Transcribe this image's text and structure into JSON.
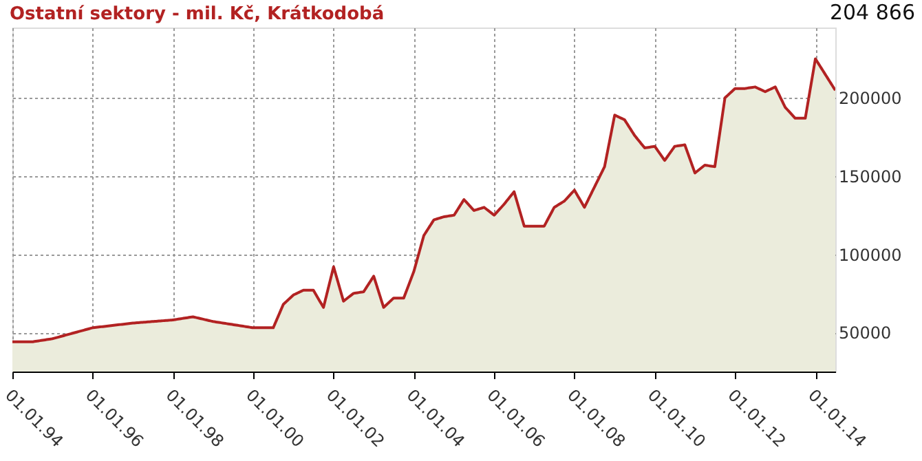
{
  "chart_data": {
    "type": "area",
    "title": "Ostatní sektory - mil. Kč, Krátkodobá",
    "annotations": [
      "204 866"
    ],
    "x": [
      "1994-01-01",
      "1994-07-01",
      "1995-01-01",
      "1996-01-01",
      "1997-01-01",
      "1998-01-01",
      "1998-07-01",
      "1999-01-01",
      "2000-01-01",
      "2000-04-01",
      "2000-07-01",
      "2000-10-01",
      "2001-01-01",
      "2001-04-01",
      "2001-07-01",
      "2001-10-01",
      "2002-01-01",
      "2002-04-01",
      "2002-07-01",
      "2002-10-01",
      "2003-01-01",
      "2003-04-01",
      "2003-07-01",
      "2003-10-01",
      "2004-01-01",
      "2004-04-01",
      "2004-07-01",
      "2004-10-01",
      "2005-01-01",
      "2005-04-01",
      "2005-07-01",
      "2005-10-01",
      "2006-01-01",
      "2006-04-01",
      "2006-07-01",
      "2006-10-01",
      "2007-01-01",
      "2007-04-01",
      "2007-07-01",
      "2007-10-01",
      "2008-01-01",
      "2008-04-01",
      "2008-07-01",
      "2008-10-01",
      "2009-01-01",
      "2009-04-01",
      "2009-07-01",
      "2009-10-01",
      "2010-01-01",
      "2010-04-01",
      "2010-07-01",
      "2010-10-01",
      "2011-01-01",
      "2011-04-01",
      "2011-07-01",
      "2011-10-01",
      "2012-01-01",
      "2012-04-01",
      "2012-07-01",
      "2012-10-01",
      "2013-01-01",
      "2013-04-01",
      "2013-07-01",
      "2013-10-01",
      "2014-01-01",
      "2014-07-01"
    ],
    "series": [
      {
        "color": "#b22222",
        "values": [
          44000,
          44000,
          46000,
          53000,
          56000,
          58000,
          60000,
          57000,
          53000,
          53000,
          53000,
          68000,
          74000,
          77000,
          77000,
          66000,
          92000,
          70000,
          75000,
          76000,
          86000,
          66000,
          72000,
          72000,
          89000,
          112000,
          122000,
          124000,
          125000,
          135000,
          128000,
          130000,
          125000,
          132000,
          140000,
          118000,
          118000,
          118000,
          130000,
          134000,
          141000,
          130000,
          143000,
          156000,
          189000,
          186000,
          176000,
          168000,
          169000,
          160000,
          169000,
          170000,
          152000,
          157000,
          156000,
          200000,
          206000,
          206000,
          207000,
          204000,
          207000,
          194000,
          187000,
          187000,
          225000,
          204866
        ]
      }
    ],
    "xlim": [
      "1994-01-01",
      "2014-07-01"
    ],
    "ylim": [
      25000,
      245000
    ],
    "xticks": [
      {
        "value": "1994-01-01",
        "label": "01.01.94"
      },
      {
        "value": "1996-01-01",
        "label": "01.01.96"
      },
      {
        "value": "1998-01-01",
        "label": "01.01.98"
      },
      {
        "value": "2000-01-01",
        "label": "01.01.00"
      },
      {
        "value": "2002-01-01",
        "label": "01.01.02"
      },
      {
        "value": "2004-01-01",
        "label": "01.01.04"
      },
      {
        "value": "2006-01-01",
        "label": "01.01.06"
      },
      {
        "value": "2008-01-01",
        "label": "01.01.08"
      },
      {
        "value": "2010-01-01",
        "label": "01.01.10"
      },
      {
        "value": "2012-01-01",
        "label": "01.01.12"
      },
      {
        "value": "2014-01-01",
        "label": "01.01.14"
      }
    ],
    "yticks": [
      50000,
      100000,
      150000,
      200000
    ],
    "grid": true,
    "marker": "none",
    "line_style": "solid"
  }
}
